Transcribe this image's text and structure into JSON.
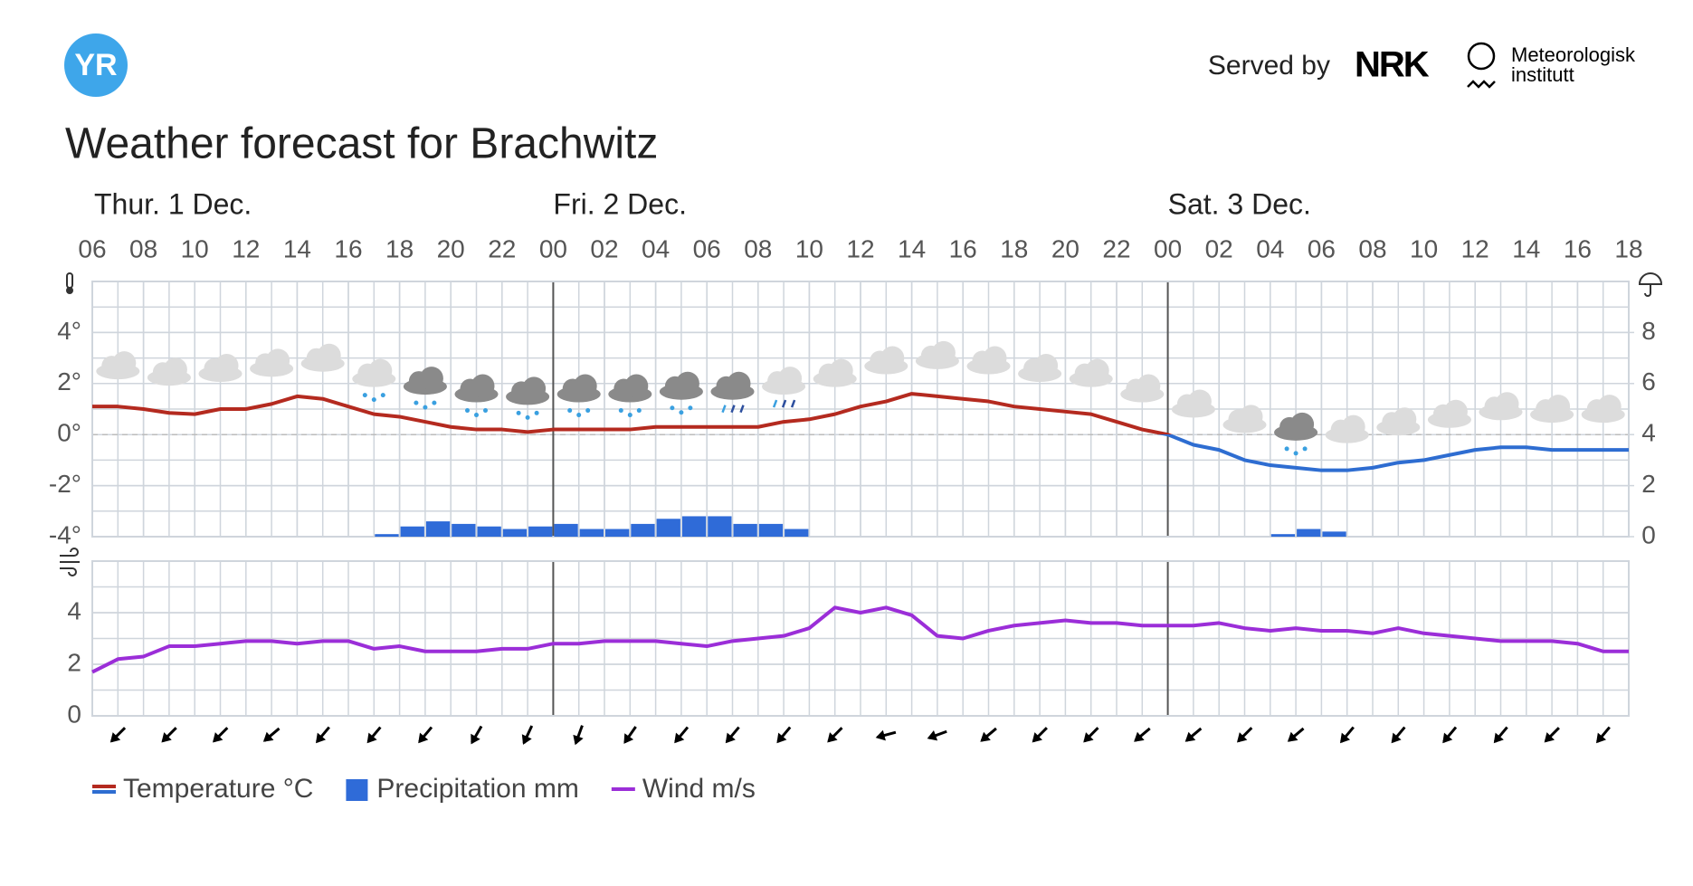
{
  "header": {
    "logo": "YR",
    "served_by": "Served by",
    "nrk": "NRK",
    "met_line1": "Meteorologisk",
    "met_line2": "institutt"
  },
  "chart_data": {
    "type": "weather",
    "title": "Weather forecast for Brachwitz",
    "days": [
      {
        "label": "Thur. 1 Dec.",
        "start": 0
      },
      {
        "label": "Fri. 2 Dec.",
        "start": 18
      },
      {
        "label": "Sat. 3 Dec.",
        "start": 42
      }
    ],
    "x": [
      0,
      1,
      2,
      3,
      4,
      5,
      6,
      7,
      8,
      9,
      10,
      11,
      12,
      13,
      14,
      15,
      16,
      17,
      18,
      19,
      20,
      21,
      22,
      23,
      24,
      25,
      26,
      27,
      28,
      29,
      30,
      31,
      32,
      33,
      34,
      35,
      36,
      37,
      38,
      39,
      40,
      41,
      42,
      43,
      44,
      45,
      46,
      47,
      48,
      49,
      50,
      51,
      52,
      53,
      54,
      55,
      56,
      57,
      58,
      59,
      60
    ],
    "xlim": [
      0,
      60
    ],
    "xticks": [
      {
        "value": 0,
        "label": "06"
      },
      {
        "value": 2,
        "label": "08"
      },
      {
        "value": 4,
        "label": "10"
      },
      {
        "value": 6,
        "label": "12"
      },
      {
        "value": 8,
        "label": "14"
      },
      {
        "value": 10,
        "label": "16"
      },
      {
        "value": 12,
        "label": "18"
      },
      {
        "value": 14,
        "label": "20"
      },
      {
        "value": 16,
        "label": "22"
      },
      {
        "value": 18,
        "label": "00"
      },
      {
        "value": 20,
        "label": "02"
      },
      {
        "value": 22,
        "label": "04"
      },
      {
        "value": 24,
        "label": "06"
      },
      {
        "value": 26,
        "label": "08"
      },
      {
        "value": 28,
        "label": "10"
      },
      {
        "value": 30,
        "label": "12"
      },
      {
        "value": 32,
        "label": "14"
      },
      {
        "value": 34,
        "label": "16"
      },
      {
        "value": 36,
        "label": "18"
      },
      {
        "value": 38,
        "label": "20"
      },
      {
        "value": 40,
        "label": "22"
      },
      {
        "value": 42,
        "label": "00"
      },
      {
        "value": 44,
        "label": "02"
      },
      {
        "value": 46,
        "label": "04"
      },
      {
        "value": 48,
        "label": "06"
      },
      {
        "value": 50,
        "label": "08"
      },
      {
        "value": 52,
        "label": "10"
      },
      {
        "value": 54,
        "label": "12"
      },
      {
        "value": 56,
        "label": "14"
      },
      {
        "value": 58,
        "label": "16"
      },
      {
        "value": 60,
        "label": "18"
      }
    ],
    "ylim": [
      -4,
      6
    ],
    "yticks": [
      {
        "value": -4,
        "label": "-4°"
      },
      {
        "value": -2,
        "label": "-2°"
      },
      {
        "value": 0,
        "label": "0°"
      },
      {
        "value": 2,
        "label": "2°"
      },
      {
        "value": 4,
        "label": "4°"
      }
    ],
    "y2lim": [
      0,
      10
    ],
    "y2ticks": [
      0,
      2,
      4,
      6,
      8
    ],
    "wind_ylim": [
      0,
      6
    ],
    "wind_yticks": [
      0,
      2,
      4
    ],
    "grid": true,
    "series": [
      {
        "name": "Temperature °C",
        "color": "#b42a1f",
        "negative_color": "#2e6dd1",
        "values": [
          1.1,
          1.1,
          1.0,
          0.85,
          0.8,
          1.0,
          1.0,
          1.2,
          1.5,
          1.4,
          1.1,
          0.8,
          0.7,
          0.5,
          0.3,
          0.2,
          0.2,
          0.1,
          0.2,
          0.2,
          0.2,
          0.2,
          0.3,
          0.3,
          0.3,
          0.3,
          0.3,
          0.5,
          0.6,
          0.8,
          1.1,
          1.3,
          1.6,
          1.5,
          1.4,
          1.3,
          1.1,
          1.0,
          0.9,
          0.8,
          0.5,
          0.2,
          0.0,
          -0.4,
          -0.6,
          -1.0,
          -1.2,
          -1.3,
          -1.4,
          -1.4,
          -1.3,
          -1.1,
          -1.0,
          -0.8,
          -0.6,
          -0.5,
          -0.5,
          -0.6,
          -0.6,
          -0.6,
          -0.6
        ]
      },
      {
        "name": "Precipitation mm",
        "color": "#2f6bd8",
        "axis": "y2",
        "values": [
          0,
          0,
          0,
          0,
          0,
          0,
          0,
          0,
          0,
          0,
          0,
          0.1,
          0.4,
          0.6,
          0.5,
          0.4,
          0.3,
          0.4,
          0.5,
          0.3,
          0.3,
          0.5,
          0.7,
          0.8,
          0.8,
          0.5,
          0.5,
          0.3,
          0,
          0,
          0,
          0,
          0,
          0,
          0,
          0,
          0,
          0,
          0,
          0,
          0,
          0,
          0,
          0,
          0,
          0,
          0.1,
          0.3,
          0.2,
          0,
          0,
          0,
          0,
          0,
          0,
          0,
          0,
          0,
          0,
          0,
          0
        ]
      },
      {
        "name": "Wind m/s",
        "color": "#9b2ed8",
        "axis": "wind",
        "values": [
          1.7,
          2.2,
          2.3,
          2.7,
          2.7,
          2.8,
          2.9,
          2.9,
          2.8,
          2.9,
          2.9,
          2.6,
          2.7,
          2.5,
          2.5,
          2.5,
          2.6,
          2.6,
          2.8,
          2.8,
          2.9,
          2.9,
          2.9,
          2.8,
          2.7,
          2.9,
          3.0,
          3.1,
          3.4,
          4.2,
          4.0,
          4.2,
          3.9,
          3.1,
          3.0,
          3.3,
          3.5,
          3.6,
          3.7,
          3.6,
          3.6,
          3.5,
          3.5,
          3.5,
          3.6,
          3.4,
          3.3,
          3.4,
          3.3,
          3.3,
          3.2,
          3.4,
          3.2,
          3.1,
          3.0,
          2.9,
          2.9,
          2.9,
          2.8,
          2.5,
          2.5
        ]
      }
    ],
    "wind_direction_x": [
      1,
      3,
      5,
      7,
      9,
      11,
      13,
      15,
      17,
      19,
      21,
      23,
      25,
      27,
      29,
      31,
      33,
      35,
      37,
      39,
      41,
      43,
      45,
      47,
      49,
      51,
      53,
      55,
      57,
      59
    ],
    "wind_direction": [
      45,
      45,
      45,
      50,
      40,
      40,
      40,
      30,
      25,
      20,
      35,
      40,
      40,
      40,
      45,
      75,
      70,
      50,
      45,
      45,
      50,
      50,
      45,
      50,
      40,
      40,
      40,
      40,
      45,
      40
    ],
    "symbols": [
      "cloud",
      "cloud",
      "cloud",
      "cloud",
      "cloud",
      "light_snow",
      "snow",
      "snow",
      "snow",
      "snow",
      "snow",
      "snow",
      "sleet",
      "light_sleet",
      "cloud",
      "cloud",
      "cloud",
      "cloud",
      "cloud",
      "cloud",
      "cloud",
      "cloud",
      "cloud",
      "snow",
      "cloud",
      "cloud",
      "cloud",
      "cloud",
      "cloud",
      "cloud"
    ]
  }
}
